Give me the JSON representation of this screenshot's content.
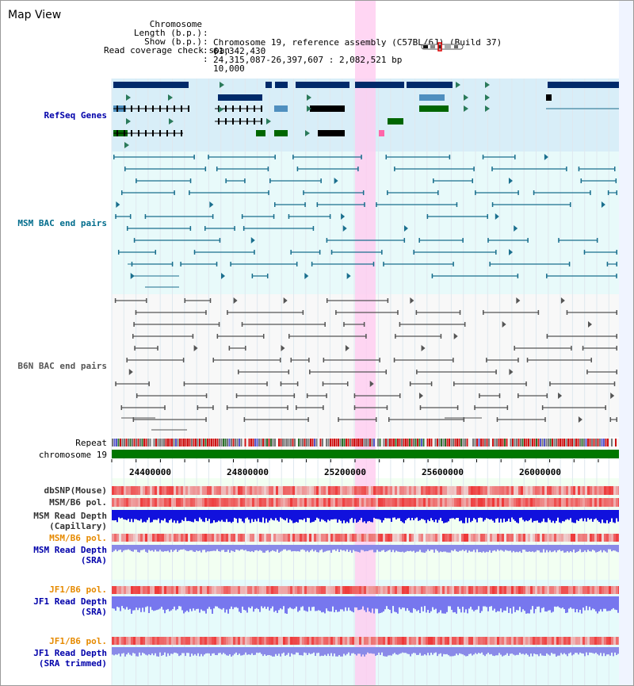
{
  "window": {
    "title": "Map View"
  },
  "info": {
    "rows": [
      {
        "key": "Chromosome",
        "value": "Chromosome 19, reference assembly (C57BL/6J) (Build 37)"
      },
      {
        "key": "Length (b.p.)",
        "value": "61,342,430"
      },
      {
        "key": "Show (b.p.)",
        "value": "24,315,087-26,397,607 : 2,082,521 bp"
      },
      {
        "key": "Read coverage check span",
        "value": "10,000"
      }
    ]
  },
  "tracks": {
    "refseq": "RefSeq Genes",
    "msm_bac": "MSM BAC end pairs",
    "b6n_bac": "B6N BAC end pairs",
    "repeat": "Repeat",
    "chromosome": "chromosome 19",
    "dbsnp": "dbSNP(Mouse)",
    "msm_b6_pol": "MSM/B6 pol.",
    "msm_depth_cap_1": "MSM Read Depth",
    "msm_depth_cap_2": "(Capillary)",
    "msm_b6_pol_2": "MSM/B6 pol.",
    "msm_depth_sra_1": "MSM Read Depth",
    "msm_depth_sra_2": "(SRA)",
    "jf1_b6_pol": "JF1/B6 pol.",
    "jf1_depth_sra_1": "JF1 Read Depth",
    "jf1_depth_sra_2": "(SRA)",
    "jf1_b6_pol_2": "JF1/B6 pol.",
    "jf1_depth_trim_1": "JF1 Read Depth",
    "jf1_depth_trim_2": "(SRA trimmed)"
  },
  "scale": {
    "ticks": [
      "24400000",
      "24800000",
      "25200000",
      "25600000",
      "26000000"
    ]
  },
  "colors": {
    "refseq_bg": "#d8eef8",
    "msm_bg": "#e8fafa",
    "b6n_bg": "#f6f6f6",
    "highlight": "#ffd0f0",
    "chromosome_bar": "#007700",
    "snp_red": "#ee3333",
    "depth_blue": "#2222dd",
    "depth_light": "#8888ee"
  }
}
